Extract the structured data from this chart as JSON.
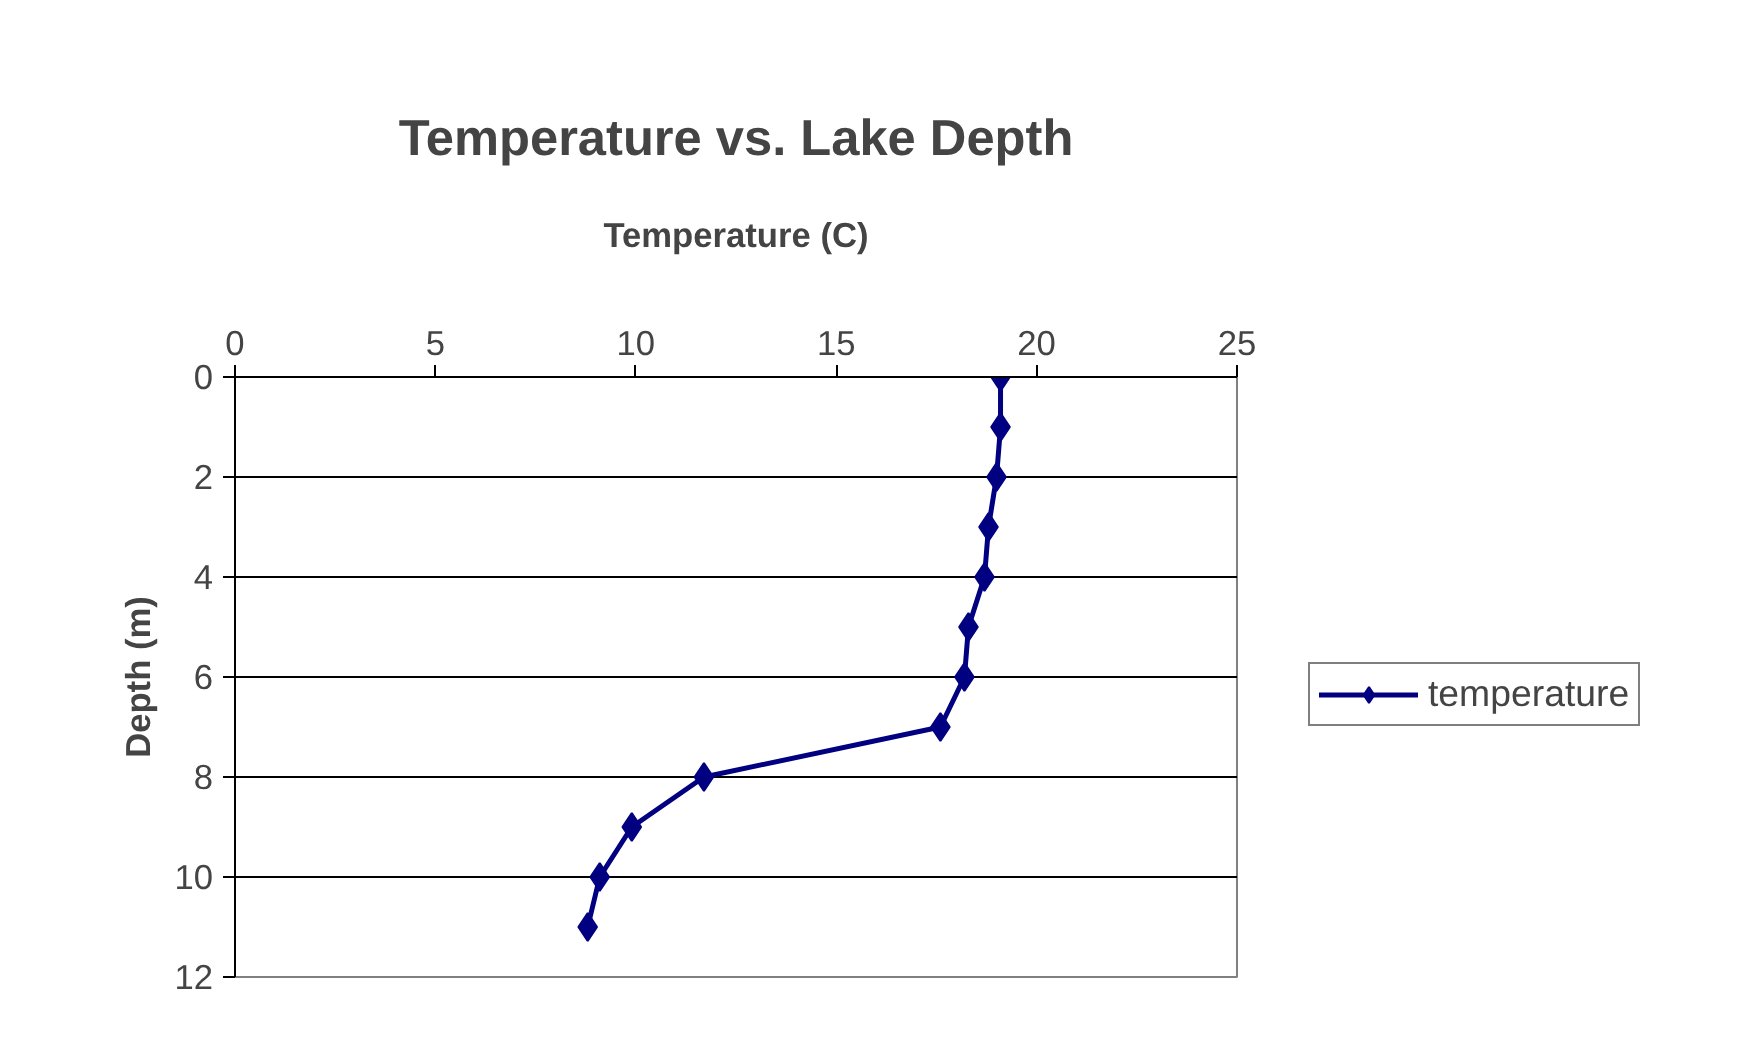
{
  "chart_data": {
    "type": "line",
    "title": "Temperature vs. Lake Depth",
    "xlabel": "Temperature (C)",
    "ylabel": "Depth (m)",
    "xlim": [
      0,
      25
    ],
    "xticks": [
      0,
      5,
      10,
      15,
      20,
      25
    ],
    "ylim": [
      12,
      0
    ],
    "yticks": [
      0,
      2,
      4,
      6,
      8,
      10,
      12
    ],
    "grid": "y",
    "legend": "right",
    "marker": "diamond",
    "line_style": "solid",
    "series": [
      {
        "name": "temperature",
        "color": "#000080",
        "x": [
          19.1,
          19.1,
          19.0,
          18.8,
          18.7,
          18.3,
          18.2,
          17.6,
          11.7,
          9.9,
          9.1,
          8.8
        ],
        "values": [
          0,
          1,
          2,
          3,
          4,
          5,
          6,
          7,
          8,
          9,
          10,
          11
        ]
      }
    ]
  }
}
